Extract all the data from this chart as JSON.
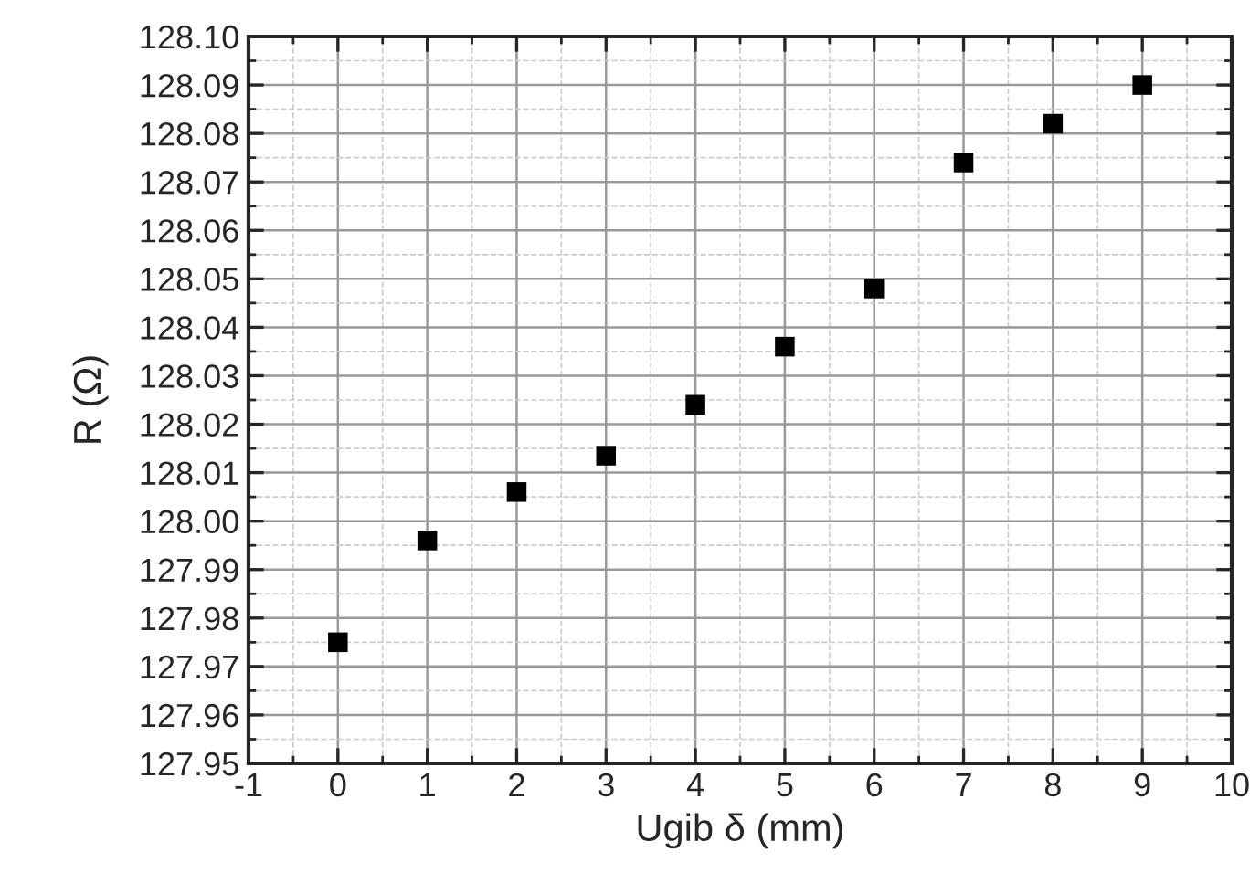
{
  "chart_data": {
    "type": "scatter",
    "xlabel": "Ugib δ (mm)",
    "ylabel": "R (Ω)",
    "x": [
      0,
      1,
      2,
      3,
      4,
      5,
      6,
      7,
      8,
      9
    ],
    "series": [
      {
        "color": "#000000",
        "values": [
          127.975,
          127.996,
          128.006,
          128.0135,
          128.024,
          128.036,
          128.048,
          128.074,
          128.082,
          128.09
        ]
      }
    ],
    "xlim": [
      -1,
      10
    ],
    "xticks": [
      {
        "value": -1,
        "label": "-1"
      },
      0,
      1,
      2,
      3,
      4,
      5,
      6,
      7,
      8,
      9,
      10
    ],
    "ylim": [
      127.95,
      128.1
    ],
    "yticks": [
      {
        "value": 127.95,
        "label": "127.95"
      },
      {
        "value": 127.96,
        "label": "127.96"
      },
      {
        "value": 127.97,
        "label": "127.97"
      },
      {
        "value": 127.98,
        "label": "127.98"
      },
      {
        "value": 127.99,
        "label": "127.99"
      },
      {
        "value": 128.0,
        "label": "128.00"
      },
      {
        "value": 128.01,
        "label": "128.01"
      },
      {
        "value": 128.02,
        "label": "128.02"
      },
      {
        "value": 128.03,
        "label": "128.03"
      },
      {
        "value": 128.04,
        "label": "128.04"
      },
      {
        "value": 128.05,
        "label": "128.05"
      },
      {
        "value": 128.06,
        "label": "128.06"
      },
      {
        "value": 128.07,
        "label": "128.07"
      },
      {
        "value": 128.08,
        "label": "128.08"
      },
      {
        "value": 128.09,
        "label": "128.09"
      },
      {
        "value": 128.1,
        "label": "128.10"
      }
    ],
    "grid": true,
    "marker": "square",
    "legend": false
  }
}
